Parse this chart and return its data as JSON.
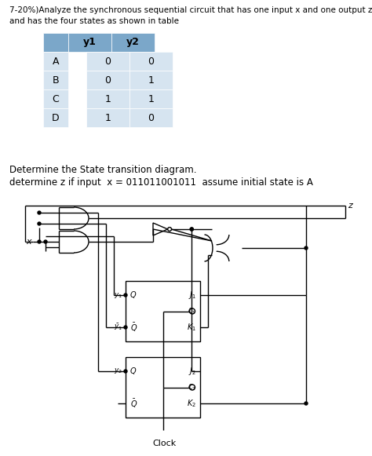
{
  "title_line1": "7-20%)Analyze the synchronous sequential circuit that has one input x and one output z",
  "title_line2": "and has the four states as shown in table",
  "table_header": [
    "",
    "y1",
    "y2"
  ],
  "table_rows": [
    [
      "A",
      "0",
      "0"
    ],
    [
      "B",
      "0",
      "1"
    ],
    [
      "C",
      "1",
      "1"
    ],
    [
      "D",
      "1",
      "0"
    ]
  ],
  "table_header_bg": "#7BA7C9",
  "table_row_bg": "#D6E4F0",
  "text1": "Determine the State transition diagram.",
  "text2": "determine z if input  x = 011011001011  assume initial state is A",
  "clock_label": "Clock",
  "bg_color": "#ffffff",
  "font_size_title": 7.5,
  "font_size_table": 9,
  "font_size_text": 8.5
}
